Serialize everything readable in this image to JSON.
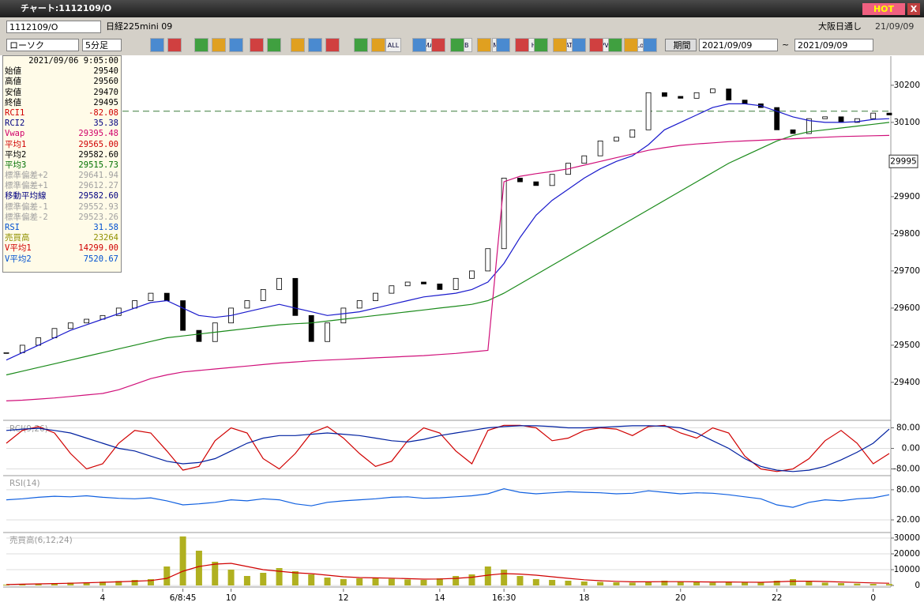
{
  "window": {
    "title": "チャート:1112109/O",
    "hot": "HOT",
    "close": "X"
  },
  "toolbar": {
    "symbol": "1112109/O",
    "name": "日経225mini 09",
    "market": "大阪日通し",
    "date_short": "21/09/09",
    "chart_type": "ローソク",
    "interval": "5分足",
    "buttons": [
      "ALL",
      "MA",
      "BB",
      "MAE",
      "HL",
      "ATR",
      "PVT",
      "Log"
    ],
    "period": "期間",
    "from": "2021/09/09",
    "tilde": "~",
    "to": "2021/09/09"
  },
  "info": {
    "timestamp": "2021/09/06 9:05:00",
    "rows": [
      {
        "label": "始値",
        "value": "29540",
        "color": "#000000"
      },
      {
        "label": "高値",
        "value": "29560",
        "color": "#000000"
      },
      {
        "label": "安値",
        "value": "29470",
        "color": "#000000"
      },
      {
        "label": "終値",
        "value": "29495",
        "color": "#000000"
      },
      {
        "label": "RCI1",
        "value": "-82.08",
        "color": "#d00000"
      },
      {
        "label": "RCI2",
        "value": "35.38",
        "color": "#000080"
      },
      {
        "label": "Vwap",
        "value": "29395.48",
        "color": "#d0006a"
      },
      {
        "label": "平均1",
        "value": "29565.00",
        "color": "#d00000"
      },
      {
        "label": "平均2",
        "value": "29582.60",
        "color": "#000000"
      },
      {
        "label": "平均3",
        "value": "29515.73",
        "color": "#007000"
      },
      {
        "label": "標準偏差+2",
        "value": "29641.94",
        "color": "#a0a0a0"
      },
      {
        "label": "標準偏差+1",
        "value": "29612.27",
        "color": "#a0a0a0"
      },
      {
        "label": "移動平均線",
        "value": "29582.60",
        "color": "#000080"
      },
      {
        "label": "標準偏差-1",
        "value": "29552.93",
        "color": "#a0a0a0"
      },
      {
        "label": "標準偏差-2",
        "value": "29523.26",
        "color": "#a0a0a0"
      },
      {
        "label": "RSI",
        "value": "31.58",
        "color": "#0050d0"
      },
      {
        "label": "売買高",
        "value": "23264",
        "color": "#909000"
      },
      {
        "label": "V平均1",
        "value": "14299.00",
        "color": "#d00000"
      },
      {
        "label": "V平均2",
        "value": "7520.67",
        "color": "#0050d0"
      }
    ]
  },
  "chart": {
    "categories": [
      null,
      null,
      null,
      null,
      null,
      null,
      "4",
      null,
      null,
      null,
      null,
      "6/8:45",
      null,
      null,
      "10",
      null,
      null,
      null,
      null,
      null,
      null,
      "12",
      null,
      null,
      null,
      null,
      null,
      "14",
      null,
      null,
      null,
      "16:30",
      null,
      null,
      null,
      null,
      "18",
      null,
      null,
      null,
      null,
      null,
      "20",
      null,
      null,
      null,
      null,
      null,
      "22",
      null,
      null,
      null,
      null,
      null,
      "0",
      null
    ],
    "main": {
      "ylim": [
        29302,
        30270
      ],
      "yticks": [
        29400,
        29500,
        29600,
        29700,
        29800,
        29900,
        30100,
        30200
      ],
      "cursor_price": 29995,
      "reference_price": 30130,
      "candles": {
        "name": "close",
        "values": [
          29480,
          29500,
          29520,
          29545,
          29560,
          29570,
          29580,
          29600,
          29620,
          29640,
          29620,
          29540,
          29510,
          29560,
          29600,
          29620,
          29650,
          29680,
          29580,
          29510,
          29560,
          29600,
          29620,
          29640,
          29660,
          29670,
          29665,
          29650,
          29680,
          29700,
          29760,
          29950,
          29940,
          29930,
          29960,
          29990,
          30010,
          30050,
          30060,
          30080,
          30180,
          30170,
          30165,
          30180,
          30190,
          30160,
          30150,
          30140,
          30080,
          30070,
          30110,
          30115,
          30100,
          30110,
          30125,
          30120
        ]
      },
      "lines": [
        {
          "color": "#1a1acc",
          "values": [
            29460,
            29480,
            29500,
            29520,
            29540,
            29555,
            29570,
            29585,
            29600,
            29615,
            29620,
            29600,
            29580,
            29575,
            29580,
            29590,
            29600,
            29610,
            29600,
            29590,
            29580,
            29585,
            29590,
            29600,
            29610,
            29620,
            29630,
            29635,
            29640,
            29650,
            29670,
            29720,
            29790,
            29850,
            29890,
            29920,
            29950,
            29975,
            29995,
            30010,
            30040,
            30080,
            30100,
            30120,
            30140,
            30150,
            30150,
            30145,
            30130,
            30115,
            30105,
            30100,
            30100,
            30102,
            30108,
            30110
          ]
        },
        {
          "color": "#1a8a1a",
          "values": [
            29420,
            29430,
            29440,
            29450,
            29460,
            29470,
            29480,
            29490,
            29500,
            29510,
            29520,
            29525,
            29530,
            29535,
            29540,
            29545,
            29550,
            29555,
            29558,
            29560,
            29565,
            29570,
            29575,
            29580,
            29585,
            29590,
            29595,
            29600,
            29605,
            29610,
            29620,
            29640,
            29665,
            29690,
            29715,
            29740,
            29765,
            29790,
            29815,
            29840,
            29865,
            29890,
            29915,
            29940,
            29965,
            29990,
            30010,
            30030,
            30050,
            30065,
            30075,
            30080,
            30085,
            30090,
            30095,
            30100
          ]
        },
        {
          "color": "#d0107a",
          "values": [
            29350,
            29352,
            29355,
            29358,
            29362,
            29366,
            29370,
            29380,
            29395,
            29410,
            29420,
            29428,
            29432,
            29436,
            29440,
            29444,
            29448,
            29452,
            29455,
            29458,
            29460,
            29462,
            29464,
            29466,
            29468,
            29470,
            29472,
            29475,
            29478,
            29482,
            29486,
            29940,
            29955,
            29962,
            29968,
            29975,
            29985,
            29995,
            30005,
            30015,
            30025,
            30032,
            30038,
            30042,
            30045,
            30048,
            30050,
            30052,
            30054,
            30056,
            30058,
            30060,
            30062,
            30063,
            30064,
            30065
          ]
        }
      ]
    },
    "rci": {
      "label": "RCI(9,26)",
      "ylim": [
        -100,
        100
      ],
      "yticks": [
        {
          "value": 80,
          "label": "80.00"
        },
        {
          "value": 0,
          "label": "0.00"
        },
        {
          "value": -80,
          "label": "-80.00"
        }
      ],
      "lines": [
        {
          "color": "#d00000",
          "values": [
            20,
            70,
            85,
            60,
            -20,
            -80,
            -60,
            20,
            70,
            60,
            -10,
            -85,
            -70,
            30,
            80,
            60,
            -40,
            -80,
            -20,
            60,
            85,
            40,
            -20,
            -70,
            -50,
            30,
            80,
            60,
            -10,
            -60,
            70,
            90,
            90,
            80,
            30,
            40,
            70,
            80,
            75,
            50,
            85,
            90,
            60,
            40,
            80,
            60,
            -30,
            -80,
            -90,
            -80,
            -40,
            30,
            70,
            20,
            -60,
            -20
          ]
        },
        {
          "color": "#0020a0",
          "values": [
            70,
            75,
            78,
            70,
            60,
            40,
            20,
            0,
            -10,
            -30,
            -50,
            -60,
            -55,
            -40,
            -10,
            20,
            40,
            50,
            50,
            55,
            60,
            55,
            50,
            40,
            30,
            25,
            35,
            50,
            60,
            70,
            80,
            85,
            88,
            88,
            85,
            80,
            80,
            82,
            85,
            88,
            88,
            86,
            80,
            60,
            30,
            0,
            -40,
            -70,
            -85,
            -90,
            -85,
            -70,
            -45,
            -15,
            20,
            75
          ]
        }
      ]
    },
    "rsi": {
      "label": "RSI(14)",
      "ylim": [
        -2,
        105
      ],
      "yticks": [
        {
          "value": 80,
          "label": "80.00"
        },
        {
          "value": 20,
          "label": "20.00"
        }
      ],
      "lines": [
        {
          "color": "#1060e0",
          "values": [
            60,
            62,
            65,
            67,
            66,
            68,
            65,
            63,
            62,
            64,
            58,
            50,
            52,
            55,
            60,
            58,
            62,
            60,
            52,
            48,
            55,
            58,
            60,
            62,
            65,
            66,
            63,
            64,
            66,
            68,
            72,
            82,
            75,
            72,
            74,
            76,
            75,
            74,
            72,
            73,
            78,
            75,
            72,
            74,
            73,
            70,
            66,
            62,
            50,
            45,
            55,
            60,
            58,
            62,
            64,
            70
          ]
        }
      ]
    },
    "volume": {
      "label": "売買高(6,12,24)",
      "ylim": [
        0,
        32500
      ],
      "yticks": [
        30000,
        20000,
        10000,
        0
      ],
      "bar_color": "#b0b020",
      "values": [
        500,
        800,
        1200,
        1500,
        1800,
        2000,
        2400,
        2800,
        3500,
        4000,
        12000,
        31000,
        22000,
        15000,
        10000,
        6000,
        8000,
        11000,
        9000,
        7000,
        5000,
        4000,
        4500,
        5000,
        4200,
        3800,
        3500,
        4500,
        6000,
        7000,
        12000,
        10000,
        6000,
        4000,
        3500,
        3000,
        2500,
        2200,
        2000,
        1800,
        2500,
        3000,
        2500,
        2000,
        1800,
        2500,
        2000,
        1800,
        3000,
        4000,
        2500,
        1800,
        1500,
        1200,
        1000,
        900
      ],
      "lines": [
        {
          "color": "#d00000",
          "values": [
            600,
            800,
            1000,
            1200,
            1400,
            1700,
            2000,
            2300,
            2700,
            3100,
            4500,
            9000,
            12000,
            13500,
            14000,
            12000,
            10000,
            9000,
            8000,
            7500,
            6500,
            5500,
            5000,
            4800,
            4600,
            4300,
            4000,
            4100,
            4500,
            5200,
            6500,
            7500,
            7200,
            6500,
            5500,
            4500,
            3600,
            3000,
            2600,
            2300,
            2300,
            2400,
            2400,
            2300,
            2200,
            2200,
            2100,
            2000,
            2300,
            2700,
            2700,
            2500,
            2200,
            1900,
            1600,
            1400
          ]
        }
      ]
    }
  }
}
